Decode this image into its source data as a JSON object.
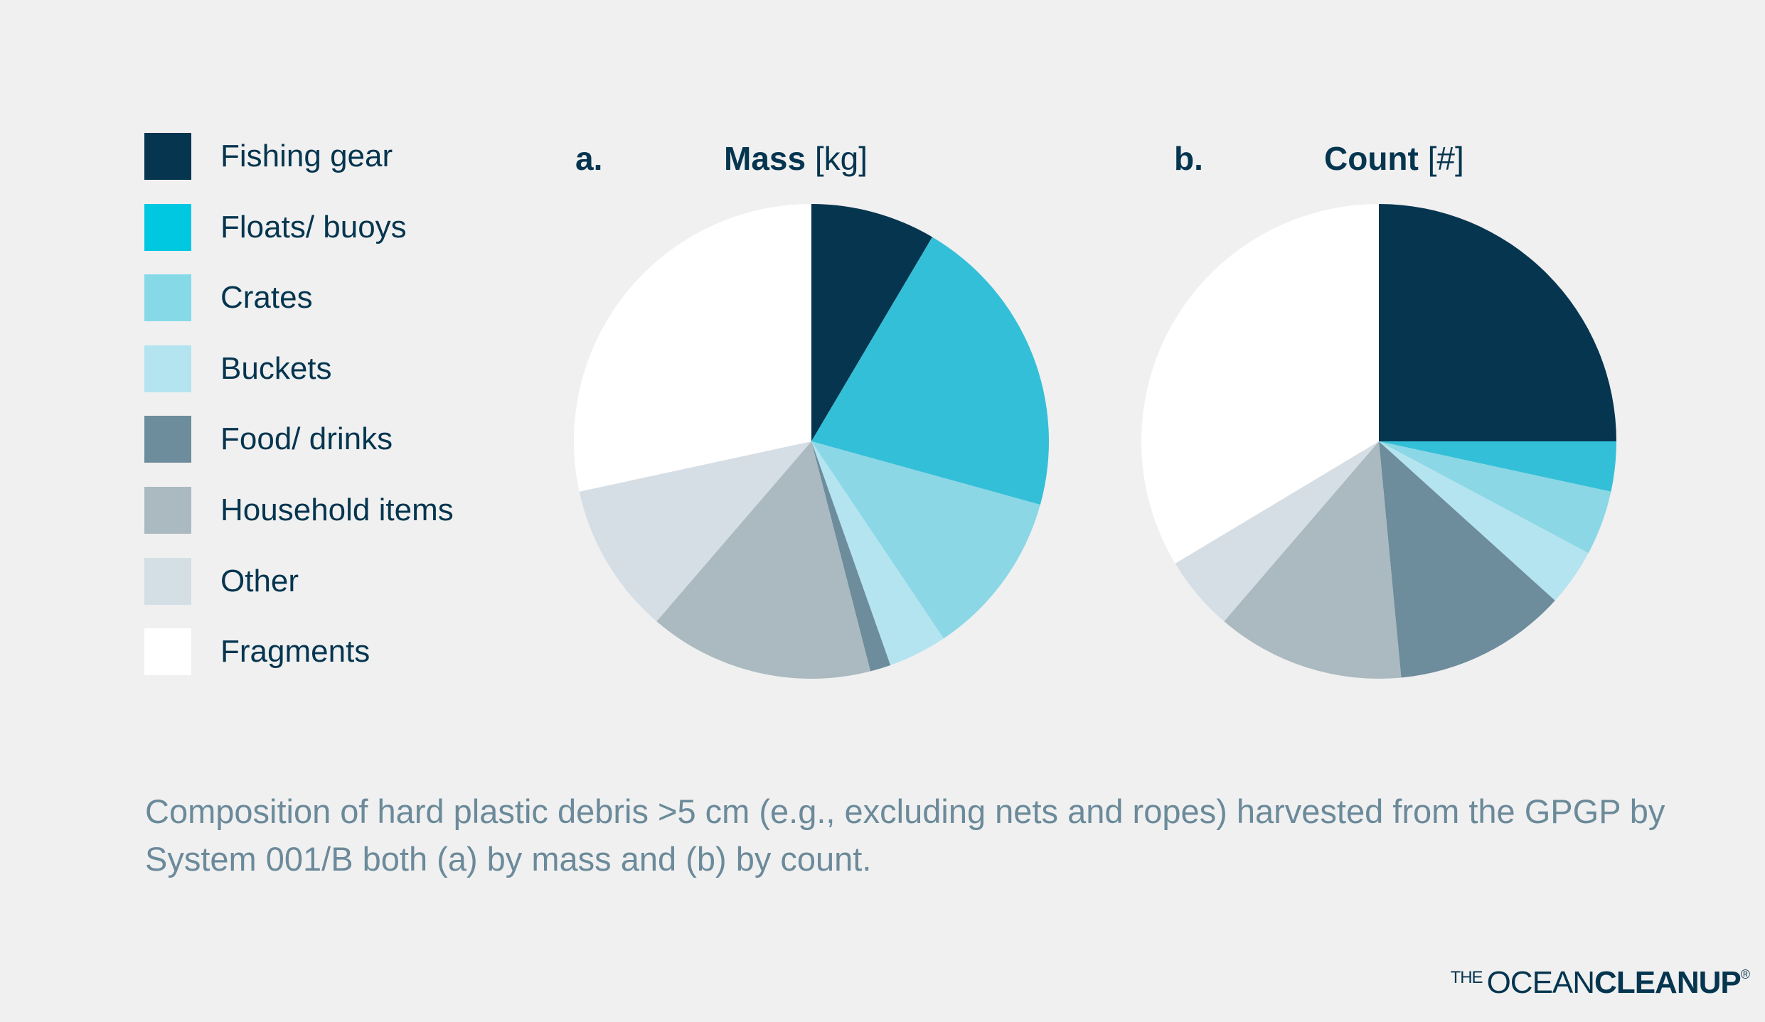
{
  "legend": [
    {
      "label": "Fishing gear",
      "color": "#05354f"
    },
    {
      "label": "Floats/ buoys",
      "color": "#00c8e0"
    },
    {
      "label": "Crates",
      "color": "#86dae8"
    },
    {
      "label": "Buckets",
      "color": "#b3e4f0"
    },
    {
      "label": "Food/ drinks",
      "color": "#6d8c9c"
    },
    {
      "label": "Household items",
      "color": "#aabac0"
    },
    {
      "label": "Other",
      "color": "#d3dfe5"
    },
    {
      "label": "Fragments",
      "color": "#ffffff"
    }
  ],
  "chart_data": [
    {
      "type": "pie",
      "panel": "a.",
      "title_bold": "Mass",
      "title_unit": "[kg]",
      "categories": [
        "Fishing gear",
        "Floats/ buoys",
        "Crates",
        "Buckets",
        "Food/ drinks",
        "Household items",
        "Other",
        "Fragments"
      ],
      "values": [
        8.5,
        20.8,
        11.3,
        4.0,
        1.4,
        15.3,
        10.3,
        28.4
      ],
      "colors": [
        "#05354f",
        "#33bfd8",
        "#8bd7e5",
        "#b3e4f0",
        "#6d8c9c",
        "#aabac0",
        "#d6dee5",
        "#ffffff"
      ],
      "start": "top",
      "direction": "clockwise"
    },
    {
      "type": "pie",
      "panel": "b.",
      "title_bold": "Count",
      "title_unit": "[#]",
      "categories": [
        "Fishing gear",
        "Floats/ buoys",
        "Crates",
        "Buckets",
        "Food/ drinks",
        "Household items",
        "Other",
        "Fragments"
      ],
      "values": [
        25.0,
        3.4,
        4.4,
        3.9,
        11.8,
        12.8,
        5.1,
        33.6
      ],
      "colors": [
        "#05354f",
        "#33bfd8",
        "#8bd7e5",
        "#b3e4f0",
        "#6d8c9c",
        "#aabac0",
        "#d6dee5",
        "#ffffff"
      ],
      "start": "top",
      "direction": "clockwise"
    }
  ],
  "caption": "Composition of hard plastic debris >5 cm (e.g., excluding nets and ropes) harvested from the GPGP by System 001/B both (a) by mass and (b) by count.",
  "logo": {
    "the": "THE",
    "ocean": "OCEAN",
    "cleanup": "CLEANUP",
    "reg": "®"
  }
}
